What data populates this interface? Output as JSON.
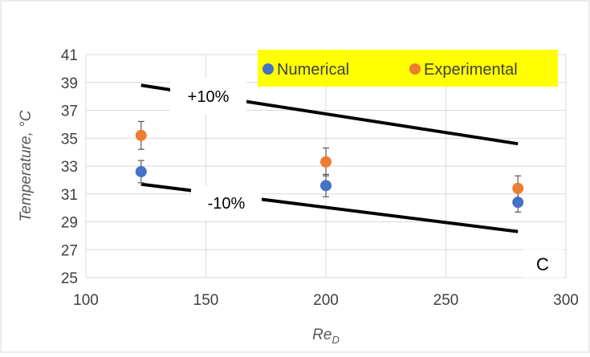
{
  "chart_data": {
    "type": "scatter",
    "title": "",
    "xlabel": "Re",
    "xlabel_sub": "D",
    "ylabel": "Temperature, °C",
    "xlim": [
      100,
      300
    ],
    "ylim": [
      25,
      41
    ],
    "xticks": [
      "100",
      "150",
      "200",
      "250",
      "300"
    ],
    "yticks": [
      "25",
      "27",
      "29",
      "31",
      "33",
      "35",
      "37",
      "39",
      "41"
    ],
    "grid": true,
    "legend_position": "top-right",
    "legend_background": "#FFFF00",
    "series": [
      {
        "name": "Numerical",
        "color": "#4472C4",
        "x": [
          123,
          200,
          280
        ],
        "y": [
          32.6,
          31.6,
          30.4
        ],
        "err": [
          0.8,
          0.8,
          0.7
        ]
      },
      {
        "name": "Experimental",
        "color": "#ED7D31",
        "x": [
          123,
          200,
          280
        ],
        "y": [
          35.2,
          33.3,
          31.4
        ],
        "err": [
          1.0,
          1.0,
          0.9
        ]
      }
    ],
    "bound_lines": [
      {
        "label": "+10%",
        "x": [
          123,
          280
        ],
        "y": [
          38.8,
          34.6
        ]
      },
      {
        "label": "-10%",
        "x": [
          123,
          280
        ],
        "y": [
          31.7,
          28.3
        ]
      }
    ],
    "panel_label": "C"
  }
}
